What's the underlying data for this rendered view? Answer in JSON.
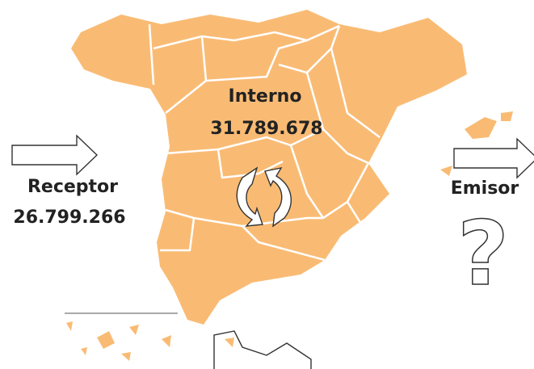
{
  "interno": {
    "label": "Interno",
    "value": "31.789.678"
  },
  "receptor": {
    "label": "Receptor",
    "value": "26.799.266"
  },
  "emisor": {
    "label": "Emisor",
    "symbol": "?"
  }
}
